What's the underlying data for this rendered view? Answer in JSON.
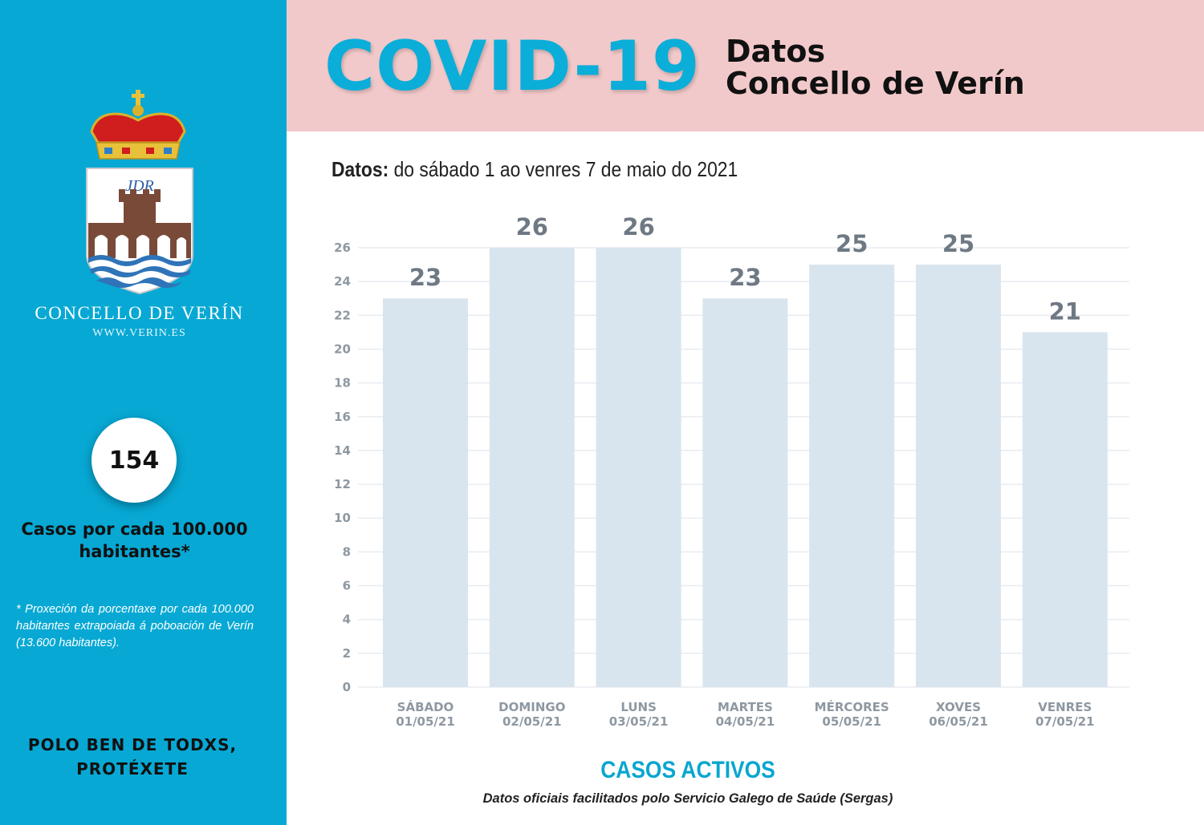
{
  "header": {
    "title": "COVID-19",
    "subtitle_line1": "Datos",
    "subtitle_line2": "Concello de Verín"
  },
  "date_range": {
    "label": "Datos:",
    "text": "do sábado 1 ao venres 7 de maio do 2021"
  },
  "sidebar": {
    "logo_monogram": "JDR",
    "org_name": "CONCELLO DE VERÍN",
    "website": "WWW.VERIN.ES",
    "rate_value": "154",
    "rate_label": "Casos por cada 100.000 habitantes*",
    "footnote": "* Proxeción da porcentaxe por cada 100.000 habitantes extrapoiada á poboación de Verín (13.600 habitantes).",
    "slogan_line1": "POLO BEN DE TODXS,",
    "slogan_line2": "PROTÉXETE"
  },
  "colors": {
    "sidebar": "#07a8d4",
    "header": "#f2c9ca",
    "title": "#0aaed8",
    "bar": "#d9e5ee",
    "value_label": "#6f7984",
    "axis_text": "#8e98a2",
    "accent_text": "#08a6cf"
  },
  "chart_data": {
    "type": "bar",
    "title": "CASOS ACTIVOS",
    "categories": [
      [
        "SÁBADO",
        "01/05/21"
      ],
      [
        "DOMINGO",
        "02/05/21"
      ],
      [
        "LUNS",
        "03/05/21"
      ],
      [
        "MARTES",
        "04/05/21"
      ],
      [
        "MÉRCORES",
        "05/05/21"
      ],
      [
        "XOVES",
        "06/05/21"
      ],
      [
        "VENRES",
        "07/05/21"
      ]
    ],
    "values": [
      23,
      26,
      26,
      23,
      25,
      25,
      21
    ],
    "yticks": [
      0,
      2,
      4,
      6,
      8,
      10,
      12,
      14,
      16,
      18,
      20,
      22,
      24,
      26
    ],
    "ylim": [
      0,
      26
    ],
    "grid": true,
    "legend": "none"
  },
  "source": "Datos oficiais facilitados polo Servicio Galego de Saúde (Sergas)"
}
